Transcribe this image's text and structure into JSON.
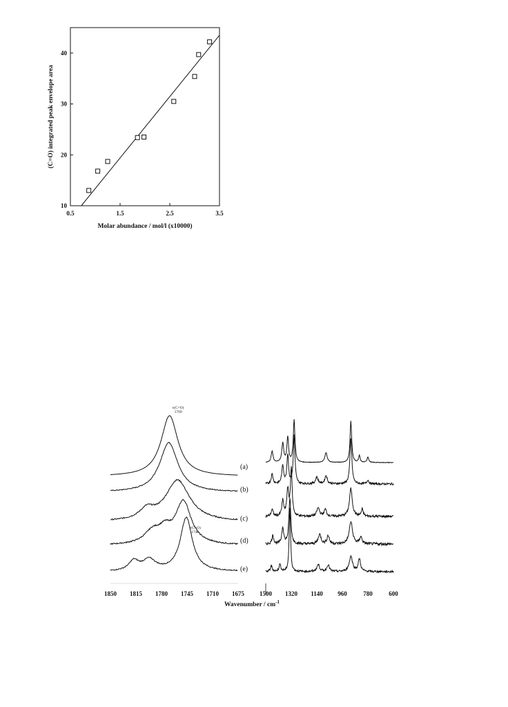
{
  "chart_data": [
    {
      "type": "scatter",
      "title": "",
      "xlabel": "Molar abundance / mol/l (x10000)",
      "ylabel": "(C=O) integrated peak envelope area",
      "xlim": [
        0.5,
        3.5
      ],
      "ylim": [
        10,
        45
      ],
      "xticks": [
        "0.5",
        "1.5",
        "2.5",
        "3.5"
      ],
      "yticks": [
        "10",
        "20",
        "30",
        "40"
      ],
      "x": [
        0.87,
        1.05,
        1.25,
        1.85,
        1.98,
        2.58,
        3.0,
        3.08,
        3.3
      ],
      "y": [
        13.0,
        16.8,
        18.7,
        23.4,
        23.5,
        30.5,
        35.4,
        39.7,
        42.2
      ],
      "fit_line": {
        "x": [
          0.72,
          3.5
        ],
        "y": [
          10,
          43.5
        ]
      },
      "grid": false
    },
    {
      "type": "line",
      "title": "",
      "xlabel": "Wavenumber / cm",
      "xlabel_superscript": "-1",
      "panels": [
        {
          "xlim": [
            1850,
            1675
          ],
          "xticks": [
            "1850",
            "1815",
            "1780",
            "1745",
            "1710",
            "1675"
          ],
          "annotations": [
            {
              "text": "ν(C=O)",
              "line2": "1769",
              "x": 1769,
              "trace": "a"
            },
            {
              "text": "ν(C=O)",
              "line2": "1746",
              "x": 1746,
              "trace": "e"
            }
          ]
        },
        {
          "xlim": [
            1500,
            600
          ],
          "xticks": [
            "1500",
            "1320",
            "1140",
            "960",
            "780",
            "600"
          ]
        }
      ],
      "series_labels": [
        "(a)",
        "(b)",
        "(c)",
        "(d)",
        "(e)"
      ]
    }
  ]
}
